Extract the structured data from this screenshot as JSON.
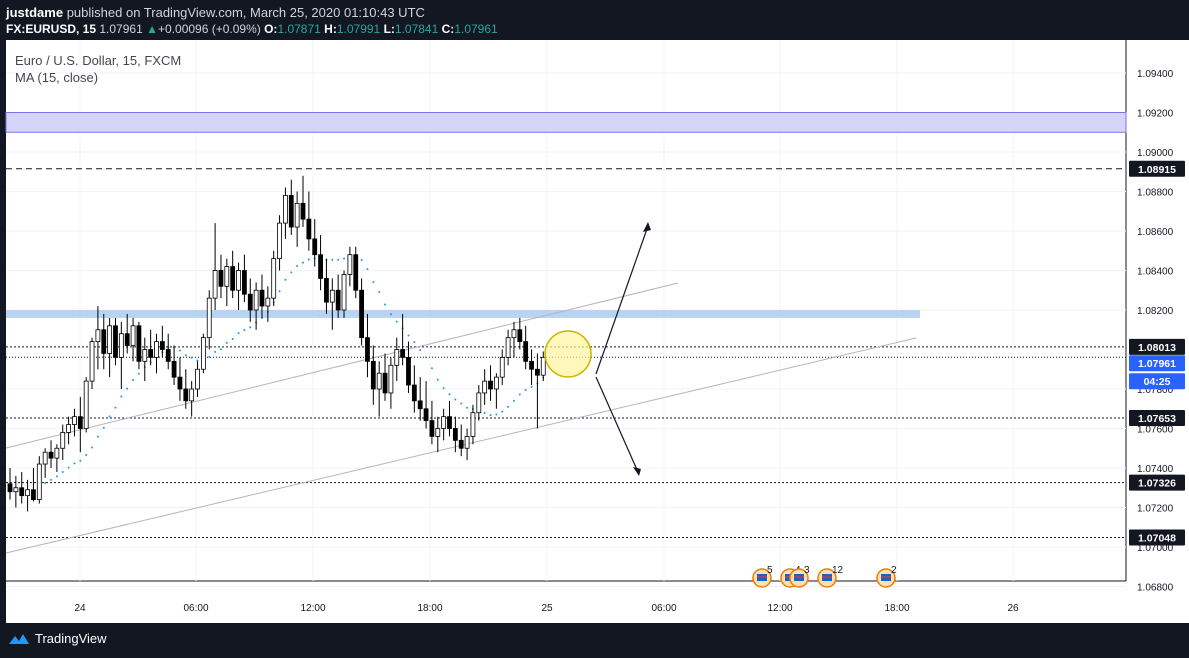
{
  "header": {
    "publisher": "justdame",
    "published_text": "published on TradingView.com, March 25, 2020 01:10:43 UTC",
    "symbol": "FX:EURUSD, 15",
    "last": "1.07961",
    "change_arrow": "▲",
    "change": "+0.00096 (+0.09%)",
    "o_label": "O:",
    "o_value": "1.07871",
    "h_label": "H:",
    "h_value": "1.07991",
    "l_label": "L:",
    "l_value": "1.07841",
    "c_label": "C:",
    "c_value": "1.07961"
  },
  "legend": {
    "instrument": "Euro / U.S. Dollar, 15, FXCM",
    "indicator": "MA (15, close)"
  },
  "colors": {
    "background": "#131722",
    "up_candle": "#ffffff",
    "down_candle": "#000000",
    "ma_dots": "#2196f3",
    "zone_purple": "#d6d4fb",
    "zone_blue": "#b9d3f2",
    "price_badge_blue": "#2962ff"
  },
  "chart_data": {
    "type": "candlestick",
    "y_axis_ticks": [
      "1.09400",
      "1.09200",
      "1.09000",
      "1.08800",
      "1.08600",
      "1.08400",
      "1.08200",
      "1.07800",
      "1.07600",
      "1.07400",
      "1.07200",
      "1.07000",
      "1.06800"
    ],
    "x_axis_ticks": [
      "24",
      "06:00",
      "12:00",
      "18:00",
      "25",
      "06:00",
      "12:00",
      "18:00",
      "26"
    ],
    "horizontal_levels": [
      "1.08915",
      "1.08013",
      "1.07653",
      "1.07326",
      "1.07048"
    ],
    "current_price": "1.07961",
    "countdown": "04:25",
    "zones": [
      {
        "name": "purple-supply-zone",
        "from": 1.091,
        "to": 1.092
      },
      {
        "name": "blue-resistance-zone",
        "from": 1.0816,
        "to": 1.082
      }
    ],
    "event_markers": [
      {
        "count": "5"
      },
      {
        "count": "4"
      },
      {
        "count": "3"
      },
      {
        "count": "12"
      },
      {
        "count": "2"
      }
    ],
    "candles": [
      [
        1.0732,
        1.074,
        1.0724,
        1.0728
      ],
      [
        1.0728,
        1.0736,
        1.072,
        1.073
      ],
      [
        1.073,
        1.0738,
        1.0722,
        1.0726
      ],
      [
        1.0726,
        1.0734,
        1.0718,
        1.0729
      ],
      [
        1.0729,
        1.074,
        1.0723,
        1.0724
      ],
      [
        1.0724,
        1.0746,
        1.0722,
        1.0742
      ],
      [
        1.0742,
        1.075,
        1.0735,
        1.0748
      ],
      [
        1.0748,
        1.0754,
        1.074,
        1.0745
      ],
      [
        1.0745,
        1.0752,
        1.0738,
        1.075
      ],
      [
        1.075,
        1.0762,
        1.0744,
        1.0758
      ],
      [
        1.0758,
        1.0766,
        1.0752,
        1.0762
      ],
      [
        1.0762,
        1.077,
        1.0756,
        1.0766
      ],
      [
        1.0766,
        1.0776,
        1.0748,
        1.076
      ],
      [
        1.076,
        1.0786,
        1.0758,
        1.0784
      ],
      [
        1.0784,
        1.0806,
        1.078,
        1.0804
      ],
      [
        1.0804,
        1.0822,
        1.079,
        1.081
      ],
      [
        1.081,
        1.0818,
        1.079,
        1.0798
      ],
      [
        1.0798,
        1.0816,
        1.0786,
        1.0812
      ],
      [
        1.0812,
        1.0816,
        1.0792,
        1.0796
      ],
      [
        1.0796,
        1.0814,
        1.078,
        1.0808
      ],
      [
        1.0808,
        1.0818,
        1.0798,
        1.0802
      ],
      [
        1.0802,
        1.0816,
        1.0794,
        1.0812
      ],
      [
        1.0812,
        1.0814,
        1.079,
        1.0794
      ],
      [
        1.0794,
        1.0806,
        1.0784,
        1.08
      ],
      [
        1.08,
        1.081,
        1.0792,
        1.0796
      ],
      [
        1.0796,
        1.0808,
        1.0788,
        1.0804
      ],
      [
        1.0804,
        1.0812,
        1.0796,
        1.08
      ],
      [
        1.08,
        1.0808,
        1.079,
        1.0794
      ],
      [
        1.0794,
        1.0802,
        1.0782,
        1.0786
      ],
      [
        1.0786,
        1.0796,
        1.0774,
        1.078
      ],
      [
        1.078,
        1.079,
        1.077,
        1.0774
      ],
      [
        1.0774,
        1.0784,
        1.0766,
        1.078
      ],
      [
        1.078,
        1.0794,
        1.0776,
        1.079
      ],
      [
        1.079,
        1.0808,
        1.0788,
        1.0806
      ],
      [
        1.0806,
        1.083,
        1.08,
        1.0826
      ],
      [
        1.0826,
        1.0864,
        1.082,
        1.084
      ],
      [
        1.084,
        1.0848,
        1.0826,
        1.0832
      ],
      [
        1.0832,
        1.0846,
        1.0822,
        1.0842
      ],
      [
        1.0842,
        1.085,
        1.0826,
        1.083
      ],
      [
        1.083,
        1.0844,
        1.082,
        1.084
      ],
      [
        1.084,
        1.0848,
        1.0824,
        1.0828
      ],
      [
        1.0828,
        1.0836,
        1.0814,
        1.082
      ],
      [
        1.082,
        1.0834,
        1.081,
        1.083
      ],
      [
        1.083,
        1.0838,
        1.0816,
        1.0822
      ],
      [
        1.0822,
        1.0832,
        1.0814,
        1.0826
      ],
      [
        1.0826,
        1.085,
        1.0822,
        1.0846
      ],
      [
        1.0846,
        1.0868,
        1.084,
        1.0864
      ],
      [
        1.0864,
        1.0882,
        1.0856,
        1.0878
      ],
      [
        1.0878,
        1.0886,
        1.0858,
        1.0862
      ],
      [
        1.0862,
        1.088,
        1.0852,
        1.0874
      ],
      [
        1.0874,
        1.0888,
        1.0862,
        1.0866
      ],
      [
        1.0866,
        1.088,
        1.085,
        1.0856
      ],
      [
        1.0856,
        1.0866,
        1.0842,
        1.0848
      ],
      [
        1.0848,
        1.0858,
        1.083,
        1.0836
      ],
      [
        1.0836,
        1.0846,
        1.0818,
        1.0824
      ],
      [
        1.0824,
        1.0836,
        1.081,
        1.083
      ],
      [
        1.083,
        1.0838,
        1.0816,
        1.082
      ],
      [
        1.082,
        1.084,
        1.0816,
        1.0838
      ],
      [
        1.0838,
        1.0852,
        1.0832,
        1.0848
      ],
      [
        1.0848,
        1.0852,
        1.0826,
        1.083
      ],
      [
        1.083,
        1.0836,
        1.0802,
        1.0806
      ],
      [
        1.0806,
        1.0818,
        1.0786,
        1.0794
      ],
      [
        1.0794,
        1.0802,
        1.0772,
        1.078
      ],
      [
        1.078,
        1.0794,
        1.0766,
        1.0788
      ],
      [
        1.0788,
        1.0798,
        1.0774,
        1.0778
      ],
      [
        1.0778,
        1.0796,
        1.077,
        1.0792
      ],
      [
        1.0792,
        1.0806,
        1.0784,
        1.08
      ],
      [
        1.08,
        1.0818,
        1.0792,
        1.0796
      ],
      [
        1.0796,
        1.0804,
        1.0778,
        1.0782
      ],
      [
        1.0782,
        1.0792,
        1.0768,
        1.0774
      ],
      [
        1.0774,
        1.0786,
        1.0764,
        1.077
      ],
      [
        1.077,
        1.0784,
        1.076,
        1.0764
      ],
      [
        1.0764,
        1.0774,
        1.0752,
        1.0756
      ],
      [
        1.0756,
        1.0766,
        1.0748,
        1.076
      ],
      [
        1.076,
        1.077,
        1.0754,
        1.0766
      ],
      [
        1.0766,
        1.0774,
        1.0756,
        1.076
      ],
      [
        1.076,
        1.0766,
        1.0748,
        1.0754
      ],
      [
        1.0754,
        1.0762,
        1.0746,
        1.075
      ],
      [
        1.075,
        1.076,
        1.0744,
        1.0756
      ],
      [
        1.0756,
        1.0772,
        1.0752,
        1.0768
      ],
      [
        1.0768,
        1.0782,
        1.0764,
        1.0778
      ],
      [
        1.0778,
        1.079,
        1.0772,
        1.0784
      ],
      [
        1.0784,
        1.0792,
        1.0774,
        1.078
      ],
      [
        1.078,
        1.0788,
        1.077,
        1.0786
      ],
      [
        1.0786,
        1.08,
        1.0782,
        1.0796
      ],
      [
        1.0796,
        1.081,
        1.0792,
        1.0806
      ],
      [
        1.0806,
        1.0814,
        1.0796,
        1.081
      ],
      [
        1.081,
        1.0816,
        1.08,
        1.0804
      ],
      [
        1.0804,
        1.0812,
        1.079,
        1.0794
      ],
      [
        1.0794,
        1.08,
        1.0782,
        1.079
      ],
      [
        1.079,
        1.0798,
        1.076,
        1.0787
      ],
      [
        1.0787,
        1.0799,
        1.0784,
        1.0796
      ]
    ]
  }
}
